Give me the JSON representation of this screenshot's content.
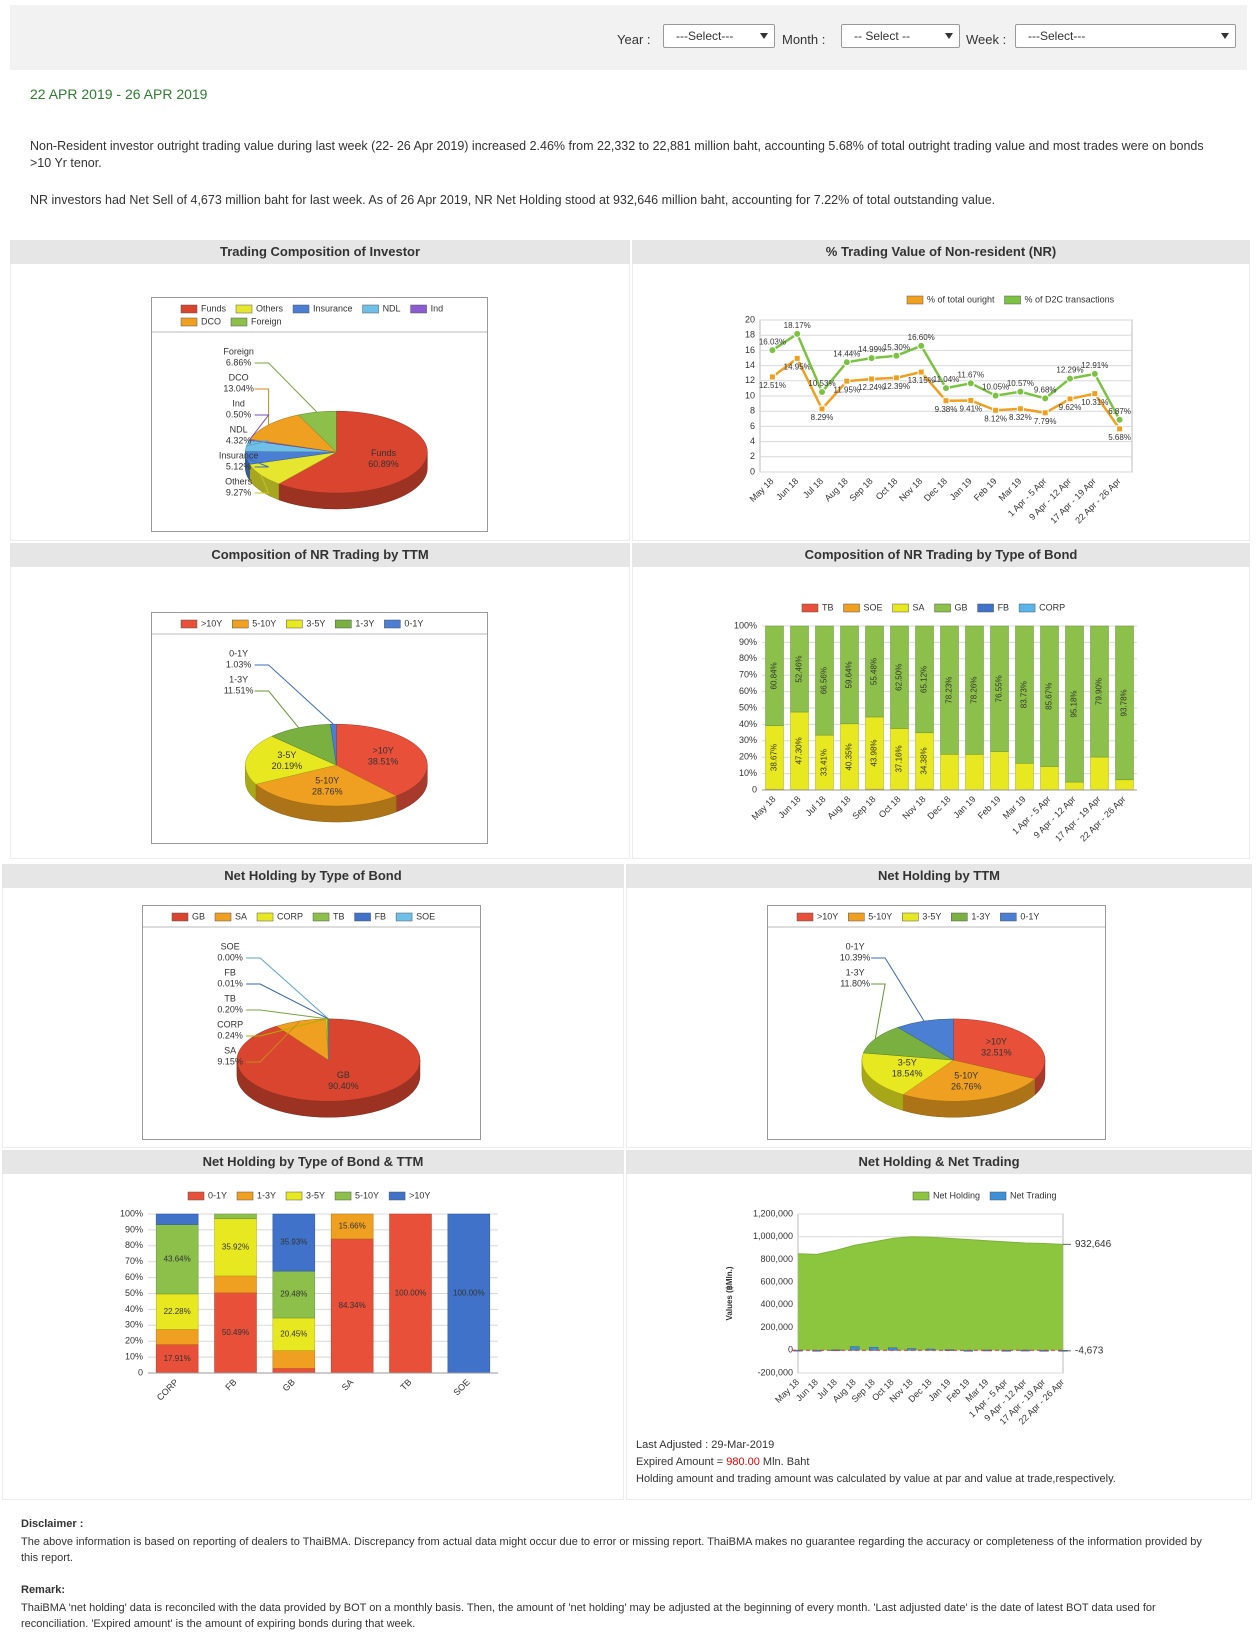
{
  "filters": [
    {
      "label": "Year :",
      "placeholder": "---Select---"
    },
    {
      "label": "Month :",
      "placeholder": "-- Select --"
    },
    {
      "label": "Week :",
      "placeholder": "---Select---"
    }
  ],
  "period": "22 APR 2019 - 26 APR 2019",
  "summary": [
    "Non-Resident investor outright trading value during last week (22- 26 Apr 2019) increased 2.46% from 22,332 to 22,881 million baht, accounting 5.68% of total outright trading value and most trades were on bonds >10 Yr tenor.",
    "NR investors had Net Sell of 4,673 million baht for last week. As of 26 Apr 2019, NR Net Holding stood at 932,646 million baht, accounting for 7.22% of total outstanding value."
  ],
  "chart_data": [
    {
      "type": "pie",
      "title": "Trading Composition of Investor",
      "categories": [
        "Funds",
        "Others",
        "Insurance",
        "NDL",
        "Ind",
        "DCO",
        "Foreign"
      ],
      "values": [
        60.89,
        9.27,
        5.12,
        4.32,
        0.5,
        13.04,
        6.86
      ],
      "value_labels": [
        "60.89%",
        "9.27%",
        "5.12%",
        "4.32%",
        "0.50%",
        "13.04%",
        "6.86%"
      ],
      "colors": [
        "#d9452f",
        "#e6e62e",
        "#4a7fd4",
        "#6ec0e8",
        "#8a5cd0",
        "#f0a020",
        "#8cc04a"
      ]
    },
    {
      "type": "line",
      "title": "% Trading Value of Non-resident (NR)",
      "categories": [
        "May 18",
        "Jun 18",
        "Jul 18",
        "Aug 18",
        "Sep 18",
        "Oct 18",
        "Nov 18",
        "Dec 18",
        "Jan 19",
        "Feb 19",
        "Mar 19",
        "1 Apr - 5 Apr",
        "9 Apr - 12 Apr",
        "17 Apr - 19 Apr",
        "22 Apr - 26 Apr"
      ],
      "series": [
        {
          "name": "% of total ouright",
          "color": "#f0a020",
          "values": [
            12.51,
            14.95,
            8.29,
            11.95,
            12.24,
            12.39,
            13.15,
            9.38,
            9.41,
            8.12,
            8.32,
            7.79,
            9.62,
            10.31,
            5.68
          ],
          "value_labels": [
            "12.51%",
            "14.95%",
            "8.29%",
            "11.95%",
            "12.24%",
            "12.39%",
            "13.15%",
            "9.38%",
            "9.41%",
            "8.12%",
            "8.32%",
            "7.79%",
            "9.62%",
            "10.31%",
            "5.68%"
          ]
        },
        {
          "name": "% of D2C transactions",
          "color": "#7cc242",
          "values": [
            16.03,
            18.17,
            10.53,
            14.44,
            14.99,
            15.3,
            16.6,
            11.04,
            11.67,
            10.05,
            10.57,
            9.68,
            12.29,
            12.91,
            6.87
          ],
          "value_labels": [
            "16.03%",
            "18.17%",
            "10.53%",
            "14.44%",
            "14.99%",
            "15.30%",
            "16.60%",
            "11.04%",
            "11.67%",
            "10.05%",
            "10.57%",
            "9.68%",
            "12.29%",
            "12.91%",
            "6.87%"
          ]
        }
      ],
      "ylim": [
        0,
        20
      ],
      "yticks": [
        0,
        2,
        4,
        6,
        8,
        10,
        12,
        14,
        16,
        18,
        20
      ],
      "grid": true
    },
    {
      "type": "pie",
      "title": "Composition of NR Trading by TTM",
      "categories": [
        ">10Y",
        "5-10Y",
        "3-5Y",
        "1-3Y",
        "0-1Y"
      ],
      "values": [
        38.51,
        28.76,
        20.19,
        11.51,
        1.03
      ],
      "value_labels": [
        "38.51%",
        "28.76%",
        "20.19%",
        "11.51%",
        "1.03%"
      ],
      "colors": [
        "#e8503a",
        "#f0a020",
        "#e8e820",
        "#7ab040",
        "#4a7fd4"
      ]
    },
    {
      "type": "bar",
      "stacked": true,
      "title": "Composition of NR Trading by Type of Bond",
      "categories": [
        "May 18",
        "Jun 18",
        "Jul 18",
        "Aug 18",
        "Sep 18",
        "Oct 18",
        "Nov 18",
        "Dec 18",
        "Jan 19",
        "Feb 19",
        "Mar 19",
        "1 Apr - 5 Apr",
        "9 Apr - 12 Apr",
        "17 Apr - 19 Apr",
        "22 Apr - 26 Apr"
      ],
      "series": [
        {
          "name": "TB",
          "color": "#e8503a",
          "values": [
            0.49,
            0.24,
            0.03,
            0.01,
            0.54,
            0.34,
            0.5,
            0,
            0,
            0,
            0,
            0,
            0,
            0,
            0
          ]
        },
        {
          "name": "SOE",
          "color": "#f0a020",
          "values": [
            0,
            0,
            0,
            0,
            0,
            0,
            0,
            0,
            0,
            0,
            0,
            0,
            0,
            0,
            0
          ]
        },
        {
          "name": "SA",
          "color": "#e8e820",
          "values": [
            38.67,
            47.3,
            33.41,
            40.35,
            43.98,
            37.16,
            34.38,
            21.77,
            21.74,
            23.45,
            16.27,
            14.33,
            4.82,
            20.1,
            6.22
          ],
          "value_labels": [
            "38.67%",
            "47.30%",
            "33.41%",
            "40.35%",
            "43.98%",
            "37.16%",
            "34.38%",
            null,
            null,
            null,
            null,
            null,
            null,
            null,
            null
          ]
        },
        {
          "name": "GB",
          "color": "#8cc04a",
          "values": [
            60.84,
            52.46,
            66.56,
            59.64,
            55.48,
            62.5,
            65.12,
            78.23,
            78.26,
            76.55,
            83.73,
            85.67,
            95.18,
            79.9,
            93.78
          ],
          "value_labels": [
            "60.84%",
            "52.46%",
            "66.56%",
            "59.64%",
            "55.48%",
            "62.50%",
            "65.12%",
            "78.23%",
            "78.26%",
            "76.55%",
            "83.73%",
            "85.67%",
            "95.18%",
            "79.90%",
            "93.78%"
          ]
        },
        {
          "name": "FB",
          "color": "#3f72c8",
          "values": [
            0,
            0,
            0,
            0,
            0,
            0,
            0,
            0,
            0,
            0,
            0,
            0,
            0,
            0,
            0
          ]
        },
        {
          "name": "CORP",
          "color": "#5ab4e8",
          "values": [
            0,
            0,
            0,
            0,
            0,
            0,
            0,
            0,
            0,
            0,
            0,
            0,
            0,
            0,
            0
          ]
        }
      ],
      "ylim": [
        0,
        100
      ],
      "yticks": [
        0,
        {
          "value": 10,
          "label": "10%"
        },
        {
          "value": 20,
          "label": "20%"
        },
        {
          "value": 30,
          "label": "30%"
        },
        {
          "value": 40,
          "label": "40%"
        },
        {
          "value": 50,
          "label": "50%"
        },
        {
          "value": 60,
          "label": "60%"
        },
        {
          "value": 70,
          "label": "70%"
        },
        {
          "value": 80,
          "label": "80%"
        },
        {
          "value": 90,
          "label": "90%"
        },
        {
          "value": 100,
          "label": "100%"
        }
      ],
      "grid": true
    },
    {
      "type": "pie",
      "title": "Net Holding by Type of Bond",
      "categories": [
        "GB",
        "SA",
        "CORP",
        "TB",
        "FB",
        "SOE"
      ],
      "values": [
        90.4,
        9.15,
        0.24,
        0.2,
        0.01,
        0.0
      ],
      "value_labels": [
        "90.40%",
        "9.15%",
        "0.24%",
        "0.20%",
        "0.01%",
        "0.00%"
      ],
      "colors": [
        "#d9452f",
        "#f0a020",
        "#e8e820",
        "#8cc04a",
        "#3f72c8",
        "#6ec0e8"
      ]
    },
    {
      "type": "pie",
      "title": "Net Holding by TTM",
      "categories": [
        ">10Y",
        "5-10Y",
        "3-5Y",
        "1-3Y",
        "0-1Y"
      ],
      "values": [
        32.51,
        26.76,
        18.54,
        11.8,
        10.39
      ],
      "value_labels": [
        "32.51%",
        "26.76%",
        "18.54%",
        "11.80%",
        "10.39%"
      ],
      "colors": [
        "#e8503a",
        "#f0a020",
        "#e8e820",
        "#7ab040",
        "#4a7fd4"
      ]
    },
    {
      "type": "bar",
      "stacked": true,
      "title": "Net Holding by Type of Bond & TTM",
      "categories": [
        "CORP",
        "FB",
        "GB",
        "SA",
        "TB",
        "SOE"
      ],
      "series": [
        {
          "name": "0-1Y",
          "color": "#e8503a",
          "values": [
            17.91,
            50.49,
            3.0,
            84.34,
            100.0,
            0
          ],
          "value_labels": [
            "17.91%",
            "50.49%",
            null,
            "84.34%",
            "100.00%",
            null
          ]
        },
        {
          "name": "1-3Y",
          "color": "#f0a020",
          "values": [
            9.53,
            10.59,
            11.14,
            15.66,
            0,
            0
          ],
          "value_labels": [
            null,
            null,
            null,
            "15.66%",
            null,
            null
          ]
        },
        {
          "name": "3-5Y",
          "color": "#e8e820",
          "values": [
            22.28,
            35.92,
            20.45,
            0,
            0,
            0
          ],
          "value_labels": [
            "22.28%",
            "35.92%",
            "20.45%",
            null,
            null,
            null
          ]
        },
        {
          "name": "5-10Y",
          "color": "#8cc04a",
          "values": [
            43.64,
            3.0,
            29.48,
            0,
            0,
            0
          ],
          "value_labels": [
            "43.64%",
            null,
            "29.48%",
            null,
            null,
            null
          ]
        },
        {
          "name": ">10Y",
          "color": "#3f72c8",
          "values": [
            6.64,
            0,
            35.93,
            0,
            0,
            100.0
          ],
          "value_labels": [
            null,
            null,
            "35.93%",
            null,
            null,
            "100.00%"
          ]
        }
      ],
      "ylim": [
        0,
        100
      ],
      "yticks": [
        0,
        {
          "value": 10,
          "label": "10%"
        },
        {
          "value": 20,
          "label": "20%"
        },
        {
          "value": 30,
          "label": "30%"
        },
        {
          "value": 40,
          "label": "40%"
        },
        {
          "value": 50,
          "label": "50%"
        },
        {
          "value": 60,
          "label": "60%"
        },
        {
          "value": 70,
          "label": "70%"
        },
        {
          "value": 80,
          "label": "80%"
        },
        {
          "value": 90,
          "label": "90%"
        },
        {
          "value": 100,
          "label": "100%"
        }
      ],
      "grid": true
    },
    {
      "type": "area",
      "title": "Net Holding & Net Trading",
      "y_label": "Values (฿Mln.)",
      "categories": [
        "May 18",
        "Jun 18",
        "Jul 18",
        "Aug 18",
        "Sep 18",
        "Oct 18",
        "Nov 18",
        "Dec 18",
        "Jan 19",
        "Feb 19",
        "Mar 19",
        "1 Apr - 5 Apr",
        "9 Apr - 12 Apr",
        "17 Apr - 19 Apr",
        "22 Apr - 26 Apr"
      ],
      "series": [
        {
          "name": "Net Holding",
          "type": "area",
          "color": "#8cc63f",
          "values": [
            850000,
            845000,
            880000,
            925000,
            955000,
            985000,
            1000000,
            995000,
            985000,
            975000,
            965000,
            955000,
            945000,
            940000,
            932646
          ],
          "value_labels": [
            null,
            null,
            null,
            null,
            null,
            null,
            null,
            null,
            null,
            null,
            null,
            null,
            null,
            null,
            "932,646"
          ]
        },
        {
          "name": "Net Trading",
          "type": "bar",
          "color": "#3d8fd6",
          "values": [
            1500,
            -2500,
            4000,
            32000,
            27000,
            22000,
            15000,
            11000,
            6000,
            -1500,
            2500,
            -1000,
            1800,
            -2600,
            -4673
          ],
          "value_labels": [
            null,
            null,
            null,
            null,
            null,
            null,
            null,
            null,
            null,
            null,
            null,
            null,
            null,
            null,
            "-4,673"
          ]
        }
      ],
      "ylim": [
        -200000,
        1200000
      ],
      "yticks": [
        {
          "value": -200000,
          "label": "-200,000"
        },
        0,
        {
          "value": 200000,
          "label": "200,000"
        },
        {
          "value": 400000,
          "label": "400,000"
        },
        {
          "value": 600000,
          "label": "600,000"
        },
        {
          "value": 800000,
          "label": "800,000"
        },
        {
          "value": 1000000,
          "label": "1,000,000"
        },
        {
          "value": 1200000,
          "label": "1,200,000"
        }
      ],
      "grid": true
    }
  ],
  "notes": {
    "last_adjusted": "Last Adjusted : 29-Mar-2019",
    "expired_prefix": "Expired Amount = ",
    "expired_amount": "980.00",
    "expired_suffix": " Mln. Baht",
    "calculation": "Holding amount and trading amount was calculated by value at par and value at trade,respectively."
  },
  "disclaimer": {
    "heading": "Disclaimer :",
    "text": "The above information is based on reporting of dealers to ThaiBMA. Discrepancy from actual data might occur due to error or missing report. ThaiBMA makes no guarantee regarding the accuracy or completeness of the information provided by this report."
  },
  "remark": {
    "heading": "Remark:",
    "text": "ThaiBMA 'net holding' data is reconciled with the data provided by BOT on a monthly basis. Then, the amount of 'net holding' may be adjusted at the beginning of every month. 'Last adjusted date' is the date of latest BOT data used for reconciliation. 'Expired amount' is the amount of expiring bonds during that week."
  }
}
